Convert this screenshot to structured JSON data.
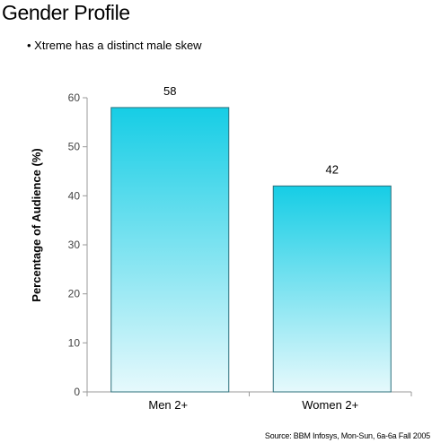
{
  "title": "Gender Profile",
  "subtitle": "• Xtreme has a distinct male skew",
  "source": "Source: BBM Infosys, Mon-Sun, 6a-6a Fall 2005",
  "colors": {
    "bar_top": "#16cde5",
    "bar_bottom": "#e6f9fc",
    "bar_stroke": "#2a6f7a",
    "axis": "#9a9a9a"
  },
  "chart_data": {
    "type": "bar",
    "categories": [
      "Men 2+",
      "Women 2+"
    ],
    "values": [
      58,
      42
    ],
    "data_labels": [
      "58",
      "42"
    ],
    "title": "Gender Profile",
    "xlabel": "",
    "ylabel": "Percentage of Audience (%)",
    "ylim": [
      0,
      60
    ],
    "yticks": [
      0,
      10,
      20,
      30,
      40,
      50,
      60
    ],
    "grid": false,
    "legend": "none"
  }
}
